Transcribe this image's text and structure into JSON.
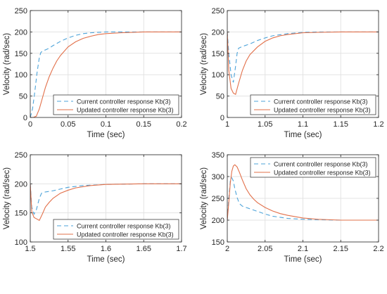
{
  "figure": {
    "colors": {
      "current": "#4DA3D9",
      "updated": "#E2704A",
      "axis": "#262626",
      "grid": "#E3E3E3"
    }
  },
  "chart_data": [
    {
      "type": "line",
      "xlabel": "Time (sec)",
      "ylabel": "Velocity (rad/sec)",
      "xlim": [
        0,
        0.2
      ],
      "ylim": [
        0,
        250
      ],
      "xticks": [
        0,
        0.05,
        0.1,
        0.15,
        0.2
      ],
      "xtick_labels": [
        "0",
        "0.05",
        "0.1",
        "0.15",
        "0.2"
      ],
      "yticks": [
        0,
        50,
        100,
        150,
        200,
        250
      ],
      "ytick_labels": [
        "0",
        "50",
        "100",
        "150",
        "200",
        "250"
      ],
      "grid": true,
      "legend": "bottom-right",
      "series": [
        {
          "name": "Current controller response Kb(3)",
          "style": "dashed",
          "x": [
            0,
            0.003,
            0.006,
            0.009,
            0.012,
            0.014,
            0.016,
            0.02,
            0.025,
            0.03,
            0.04,
            0.05,
            0.06,
            0.07,
            0.08,
            0.1,
            0.12,
            0.15,
            0.2
          ],
          "y": [
            0,
            20,
            60,
            105,
            140,
            152,
            155,
            158,
            162,
            168,
            178,
            186,
            192,
            196,
            198,
            200,
            200,
            200,
            200
          ]
        },
        {
          "name": "Updated controller response Kb(3)",
          "style": "solid",
          "x": [
            0,
            0.004,
            0.008,
            0.012,
            0.016,
            0.02,
            0.025,
            0.03,
            0.035,
            0.04,
            0.05,
            0.06,
            0.07,
            0.08,
            0.09,
            0.1,
            0.12,
            0.15,
            0.2
          ],
          "y": [
            0,
            0,
            3,
            20,
            45,
            70,
            95,
            115,
            132,
            145,
            165,
            177,
            185,
            190,
            194,
            196,
            198,
            200,
            200
          ]
        }
      ]
    },
    {
      "type": "line",
      "xlabel": "Time (sec)",
      "ylabel": "Velocity (rad/sec)",
      "xlim": [
        1,
        1.2
      ],
      "ylim": [
        0,
        250
      ],
      "xticks": [
        1,
        1.05,
        1.1,
        1.15,
        1.2
      ],
      "xtick_labels": [
        "1",
        "1.05",
        "1.1",
        "1.15",
        "1.2"
      ],
      "yticks": [
        0,
        50,
        100,
        150,
        200,
        250
      ],
      "ytick_labels": [
        "0",
        "50",
        "100",
        "150",
        "200",
        "250"
      ],
      "grid": true,
      "legend": "bottom-right",
      "series": [
        {
          "name": "Current controller response Kb(3)",
          "style": "dashed",
          "x": [
            1,
            1.002,
            1.005,
            1.008,
            1.011,
            1.013,
            1.015,
            1.02,
            1.03,
            1.04,
            1.05,
            1.06,
            1.08,
            1.1,
            1.12,
            1.15,
            1.2
          ],
          "y": [
            200,
            150,
            100,
            82,
            120,
            150,
            162,
            166,
            172,
            180,
            186,
            191,
            196,
            199,
            200,
            200,
            200
          ]
        },
        {
          "name": "Updated controller response Kb(3)",
          "style": "solid",
          "x": [
            1,
            1.002,
            1.005,
            1.008,
            1.011,
            1.015,
            1.02,
            1.025,
            1.03,
            1.04,
            1.05,
            1.06,
            1.07,
            1.08,
            1.1,
            1.12,
            1.15,
            1.2
          ],
          "y": [
            200,
            110,
            68,
            57,
            54,
            80,
            110,
            132,
            147,
            165,
            178,
            186,
            191,
            194,
            198,
            199,
            200,
            200
          ]
        }
      ]
    },
    {
      "type": "line",
      "xlabel": "Time (sec)",
      "ylabel": "Velocity (rad/sec)",
      "xlim": [
        1.5,
        1.7
      ],
      "ylim": [
        100,
        250
      ],
      "xticks": [
        1.5,
        1.55,
        1.6,
        1.65,
        1.7
      ],
      "xtick_labels": [
        "1.5",
        "1.55",
        "1.6",
        "1.65",
        "1.7"
      ],
      "yticks": [
        100,
        150,
        200,
        250
      ],
      "ytick_labels": [
        "100",
        "150",
        "200",
        "250"
      ],
      "grid": true,
      "legend": "bottom-right",
      "series": [
        {
          "name": "Current controller response Kb(3)",
          "style": "dashed",
          "x": [
            1.5,
            1.502,
            1.505,
            1.508,
            1.512,
            1.515,
            1.52,
            1.53,
            1.54,
            1.55,
            1.57,
            1.6,
            1.65,
            1.7
          ],
          "y": [
            200,
            160,
            148,
            155,
            175,
            184,
            186,
            188,
            191,
            194,
            197,
            199,
            200,
            200
          ]
        },
        {
          "name": "Updated controller response Kb(3)",
          "style": "solid",
          "x": [
            1.5,
            1.502,
            1.505,
            1.508,
            1.512,
            1.516,
            1.52,
            1.525,
            1.53,
            1.54,
            1.55,
            1.56,
            1.58,
            1.6,
            1.65,
            1.7
          ],
          "y": [
            200,
            152,
            142,
            140,
            137,
            148,
            160,
            168,
            175,
            184,
            189,
            193,
            197,
            199,
            200,
            200
          ]
        }
      ]
    },
    {
      "type": "line",
      "xlabel": "Time (sec)",
      "ylabel": "Velocity (rad/sec)",
      "xlim": [
        2,
        2.2
      ],
      "ylim": [
        150,
        350
      ],
      "xticks": [
        2,
        2.05,
        2.1,
        2.15,
        2.2
      ],
      "xtick_labels": [
        "2",
        "2.05",
        "2.1",
        "2.15",
        "2.2"
      ],
      "yticks": [
        150,
        200,
        250,
        300,
        350
      ],
      "ytick_labels": [
        "150",
        "200",
        "250",
        "300",
        "350"
      ],
      "grid": true,
      "legend": "top-right",
      "series": [
        {
          "name": "Current controller response Kb(3)",
          "style": "dashed",
          "x": [
            2,
            2.002,
            2.004,
            2.006,
            2.008,
            2.01,
            2.013,
            2.016,
            2.02,
            2.025,
            2.03,
            2.04,
            2.05,
            2.06,
            2.08,
            2.1,
            2.12,
            2.15,
            2.2
          ],
          "y": [
            200,
            250,
            290,
            297,
            290,
            272,
            252,
            238,
            232,
            229,
            226,
            220,
            214,
            209,
            204,
            202,
            201,
            200,
            200
          ]
        },
        {
          "name": "Updated controller response Kb(3)",
          "style": "solid",
          "x": [
            2,
            2.002,
            2.004,
            2.006,
            2.008,
            2.01,
            2.013,
            2.016,
            2.02,
            2.025,
            2.03,
            2.035,
            2.04,
            2.05,
            2.06,
            2.07,
            2.08,
            2.1,
            2.12,
            2.15,
            2.2
          ],
          "y": [
            200,
            240,
            285,
            312,
            324,
            327,
            322,
            310,
            292,
            272,
            258,
            248,
            240,
            229,
            221,
            215,
            211,
            205,
            202,
            200,
            200
          ]
        }
      ]
    }
  ]
}
